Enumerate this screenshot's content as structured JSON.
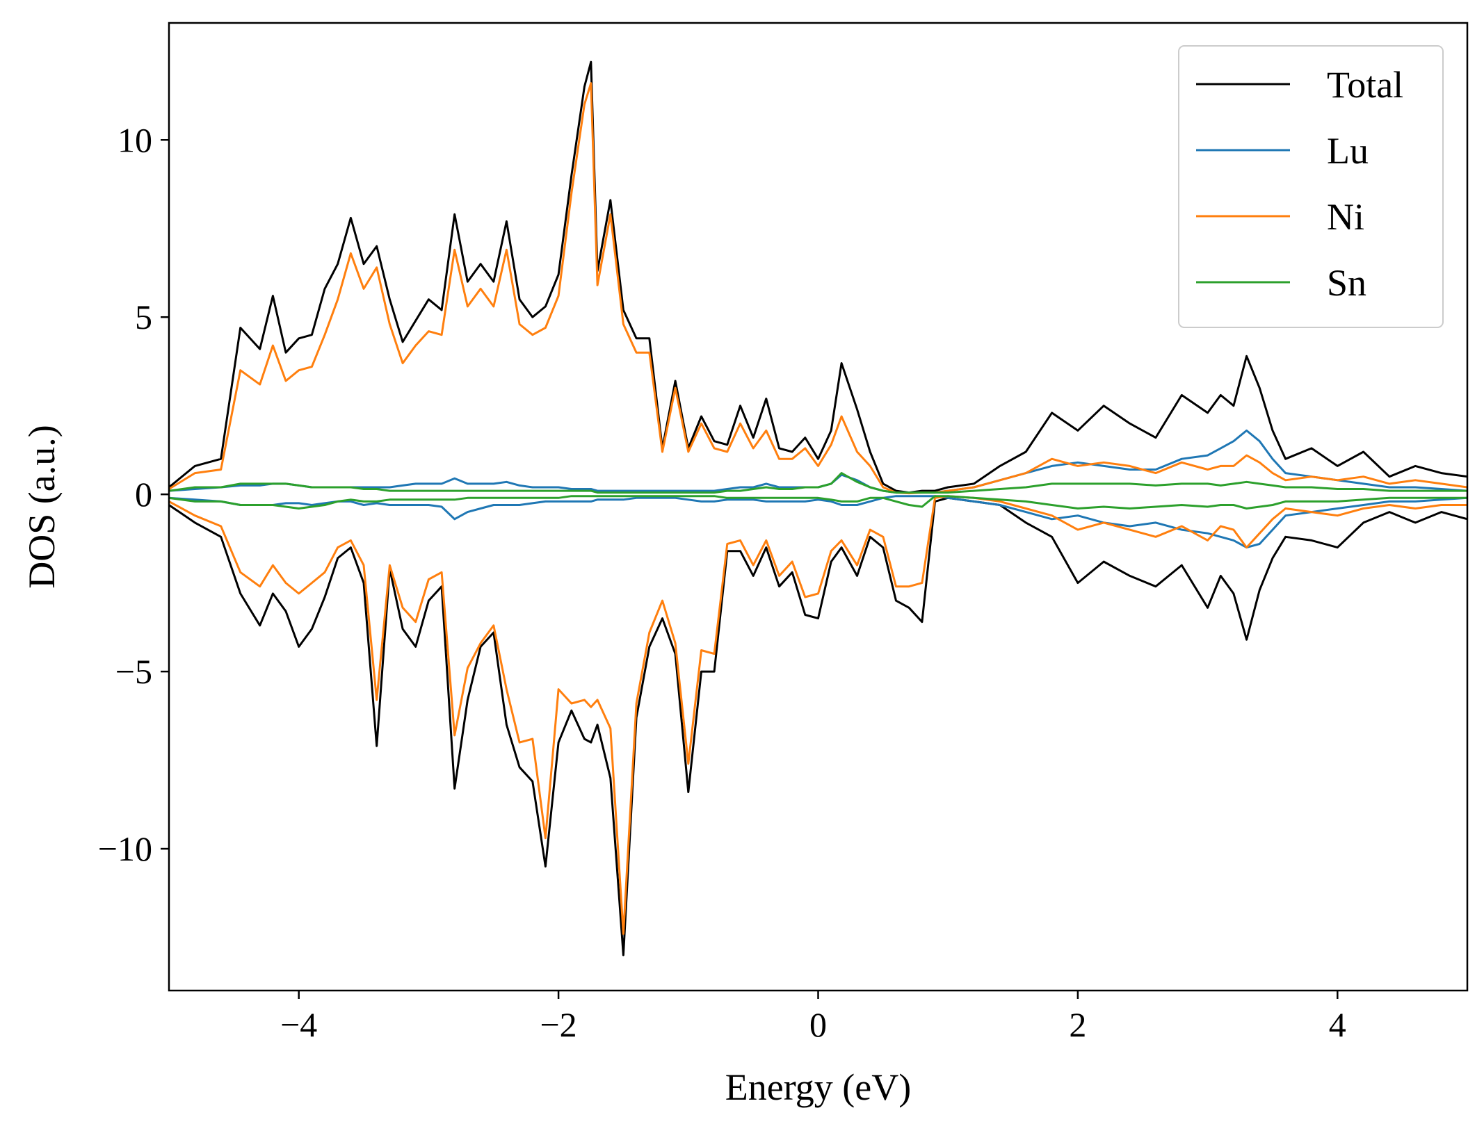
{
  "chart_data": {
    "type": "line",
    "title": "",
    "xlabel": "Energy (eV)",
    "ylabel": "DOS (a.u.)",
    "xlim": [
      -5,
      5
    ],
    "ylim": [
      -14,
      13.3
    ],
    "grid": false,
    "legend_position": "top-right",
    "x_ticks": [
      -4,
      -2,
      0,
      2,
      4
    ],
    "x_tick_labels": [
      "−4",
      "−2",
      "0",
      "2",
      "4"
    ],
    "y_ticks": [
      10,
      5,
      0,
      -5,
      -10
    ],
    "y_tick_labels": [
      "10",
      "5",
      "0",
      "−5",
      "−10"
    ],
    "x": [
      -5.0,
      -4.8,
      -4.6,
      -4.45,
      -4.3,
      -4.2,
      -4.1,
      -4.0,
      -3.9,
      -3.8,
      -3.7,
      -3.6,
      -3.5,
      -3.4,
      -3.3,
      -3.2,
      -3.1,
      -3.0,
      -2.9,
      -2.8,
      -2.7,
      -2.6,
      -2.5,
      -2.4,
      -2.3,
      -2.2,
      -2.1,
      -2.0,
      -1.9,
      -1.8,
      -1.75,
      -1.7,
      -1.6,
      -1.5,
      -1.4,
      -1.3,
      -1.2,
      -1.1,
      -1.0,
      -0.9,
      -0.8,
      -0.7,
      -0.6,
      -0.5,
      -0.4,
      -0.3,
      -0.2,
      -0.1,
      0.0,
      0.1,
      0.18,
      0.3,
      0.4,
      0.5,
      0.6,
      0.7,
      0.8,
      0.9,
      1.0,
      1.2,
      1.4,
      1.6,
      1.8,
      2.0,
      2.2,
      2.4,
      2.6,
      2.8,
      3.0,
      3.1,
      3.2,
      3.3,
      3.4,
      3.5,
      3.6,
      3.8,
      4.0,
      4.2,
      4.4,
      4.6,
      4.8,
      5.0
    ],
    "series": [
      {
        "name": "Total",
        "color": "#000000",
        "up": [
          0.2,
          0.8,
          1.0,
          4.7,
          4.1,
          5.6,
          4.0,
          4.4,
          4.5,
          5.8,
          6.5,
          7.8,
          6.5,
          7.0,
          5.5,
          4.3,
          4.9,
          5.5,
          5.2,
          7.9,
          6.0,
          6.5,
          6.0,
          7.7,
          5.5,
          5.0,
          5.3,
          6.2,
          9.0,
          11.5,
          12.2,
          6.3,
          8.3,
          5.2,
          4.4,
          4.4,
          1.3,
          3.2,
          1.3,
          2.2,
          1.5,
          1.4,
          2.5,
          1.6,
          2.7,
          1.3,
          1.2,
          1.6,
          1.0,
          1.8,
          3.7,
          2.4,
          1.2,
          0.3,
          0.1,
          0.05,
          0.1,
          0.1,
          0.2,
          0.3,
          0.8,
          1.2,
          2.3,
          1.8,
          2.5,
          2.0,
          1.6,
          2.8,
          2.3,
          2.8,
          2.5,
          3.9,
          3.0,
          1.8,
          1.0,
          1.3,
          0.8,
          1.2,
          0.5,
          0.8,
          0.6,
          0.5
        ],
        "down": [
          -0.3,
          -0.8,
          -1.2,
          -2.8,
          -3.7,
          -2.8,
          -3.3,
          -4.3,
          -3.8,
          -2.9,
          -1.8,
          -1.5,
          -2.5,
          -7.1,
          -2.1,
          -3.8,
          -4.3,
          -3.0,
          -2.6,
          -8.3,
          -5.8,
          -4.3,
          -3.9,
          -6.5,
          -7.7,
          -8.1,
          -10.5,
          -7.0,
          -6.1,
          -6.9,
          -7.0,
          -6.5,
          -8.0,
          -13.0,
          -6.3,
          -4.3,
          -3.5,
          -4.5,
          -8.4,
          -5.0,
          -5.0,
          -1.6,
          -1.6,
          -2.3,
          -1.5,
          -2.6,
          -2.2,
          -3.4,
          -3.5,
          -1.9,
          -1.5,
          -2.3,
          -1.2,
          -1.5,
          -3.0,
          -3.2,
          -3.6,
          -0.2,
          -0.1,
          -0.2,
          -0.3,
          -0.8,
          -1.2,
          -2.5,
          -1.9,
          -2.3,
          -2.6,
          -2.0,
          -3.2,
          -2.3,
          -2.8,
          -4.1,
          -2.7,
          -1.8,
          -1.2,
          -1.3,
          -1.5,
          -0.8,
          -0.5,
          -0.8,
          -0.5,
          -0.7
        ]
      },
      {
        "name": "Lu",
        "color": "#1f77b4",
        "up": [
          0.1,
          0.15,
          0.2,
          0.25,
          0.25,
          0.3,
          0.3,
          0.25,
          0.2,
          0.2,
          0.2,
          0.2,
          0.2,
          0.2,
          0.2,
          0.25,
          0.3,
          0.3,
          0.3,
          0.45,
          0.3,
          0.3,
          0.3,
          0.35,
          0.25,
          0.2,
          0.2,
          0.2,
          0.15,
          0.15,
          0.15,
          0.1,
          0.1,
          0.1,
          0.1,
          0.1,
          0.1,
          0.1,
          0.1,
          0.1,
          0.1,
          0.15,
          0.2,
          0.2,
          0.3,
          0.2,
          0.2,
          0.2,
          0.2,
          0.3,
          0.55,
          0.4,
          0.2,
          0.1,
          0.05,
          0.05,
          0.05,
          0.05,
          0.1,
          0.2,
          0.4,
          0.6,
          0.8,
          0.9,
          0.8,
          0.7,
          0.7,
          1.0,
          1.1,
          1.3,
          1.5,
          1.8,
          1.5,
          1.0,
          0.6,
          0.5,
          0.4,
          0.3,
          0.2,
          0.2,
          0.15,
          0.1
        ],
        "down": [
          -0.1,
          -0.15,
          -0.2,
          -0.3,
          -0.3,
          -0.3,
          -0.25,
          -0.25,
          -0.3,
          -0.25,
          -0.2,
          -0.2,
          -0.3,
          -0.25,
          -0.3,
          -0.3,
          -0.3,
          -0.3,
          -0.35,
          -0.7,
          -0.5,
          -0.4,
          -0.3,
          -0.3,
          -0.3,
          -0.25,
          -0.2,
          -0.2,
          -0.2,
          -0.2,
          -0.2,
          -0.15,
          -0.15,
          -0.15,
          -0.1,
          -0.1,
          -0.1,
          -0.1,
          -0.15,
          -0.2,
          -0.2,
          -0.15,
          -0.15,
          -0.15,
          -0.2,
          -0.2,
          -0.2,
          -0.2,
          -0.15,
          -0.2,
          -0.3,
          -0.3,
          -0.2,
          -0.1,
          -0.05,
          -0.05,
          -0.05,
          -0.05,
          -0.1,
          -0.2,
          -0.3,
          -0.5,
          -0.7,
          -0.6,
          -0.8,
          -0.9,
          -0.8,
          -1.0,
          -1.1,
          -1.2,
          -1.3,
          -1.5,
          -1.4,
          -1.0,
          -0.6,
          -0.5,
          -0.4,
          -0.3,
          -0.2,
          -0.2,
          -0.15,
          -0.1
        ]
      },
      {
        "name": "Ni",
        "color": "#ff7f0e",
        "up": [
          0.15,
          0.6,
          0.7,
          3.5,
          3.1,
          4.2,
          3.2,
          3.5,
          3.6,
          4.5,
          5.5,
          6.8,
          5.8,
          6.4,
          4.8,
          3.7,
          4.2,
          4.6,
          4.5,
          6.9,
          5.3,
          5.8,
          5.3,
          6.9,
          4.8,
          4.5,
          4.7,
          5.6,
          8.5,
          11.0,
          11.6,
          5.9,
          7.9,
          4.8,
          4.0,
          4.0,
          1.2,
          3.0,
          1.2,
          2.0,
          1.3,
          1.2,
          2.0,
          1.3,
          1.8,
          1.0,
          1.0,
          1.3,
          0.8,
          1.4,
          2.2,
          1.2,
          0.8,
          0.2,
          0.05,
          0.03,
          0.05,
          0.05,
          0.1,
          0.2,
          0.4,
          0.6,
          1.0,
          0.8,
          0.9,
          0.8,
          0.6,
          0.9,
          0.7,
          0.8,
          0.8,
          1.1,
          0.9,
          0.6,
          0.4,
          0.5,
          0.4,
          0.5,
          0.3,
          0.4,
          0.3,
          0.2
        ],
        "down": [
          -0.2,
          -0.6,
          -0.9,
          -2.2,
          -2.6,
          -2.0,
          -2.5,
          -2.8,
          -2.5,
          -2.2,
          -1.5,
          -1.3,
          -2.0,
          -5.8,
          -2.0,
          -3.2,
          -3.6,
          -2.4,
          -2.2,
          -6.8,
          -4.9,
          -4.2,
          -3.7,
          -5.5,
          -7.0,
          -6.9,
          -9.7,
          -5.5,
          -5.9,
          -5.8,
          -6.0,
          -5.8,
          -6.6,
          -12.4,
          -5.9,
          -3.9,
          -3.0,
          -4.2,
          -7.6,
          -4.4,
          -4.5,
          -1.4,
          -1.3,
          -2.0,
          -1.3,
          -2.3,
          -1.9,
          -2.9,
          -2.8,
          -1.6,
          -1.3,
          -2.0,
          -1.0,
          -1.2,
          -2.6,
          -2.6,
          -2.5,
          -0.1,
          -0.05,
          -0.1,
          -0.2,
          -0.4,
          -0.6,
          -1.0,
          -0.8,
          -1.0,
          -1.2,
          -0.9,
          -1.3,
          -0.9,
          -1.0,
          -1.5,
          -1.1,
          -0.7,
          -0.4,
          -0.5,
          -0.6,
          -0.4,
          -0.3,
          -0.4,
          -0.3,
          -0.3
        ]
      },
      {
        "name": "Sn",
        "color": "#2ca02c",
        "up": [
          0.1,
          0.2,
          0.2,
          0.3,
          0.3,
          0.3,
          0.3,
          0.25,
          0.2,
          0.2,
          0.2,
          0.2,
          0.15,
          0.15,
          0.1,
          0.1,
          0.1,
          0.1,
          0.1,
          0.1,
          0.1,
          0.1,
          0.1,
          0.1,
          0.1,
          0.1,
          0.1,
          0.1,
          0.1,
          0.1,
          0.1,
          0.05,
          0.05,
          0.05,
          0.05,
          0.05,
          0.05,
          0.05,
          0.05,
          0.05,
          0.05,
          0.1,
          0.1,
          0.15,
          0.2,
          0.15,
          0.15,
          0.2,
          0.2,
          0.3,
          0.6,
          0.35,
          0.2,
          0.1,
          0.05,
          0.05,
          0.05,
          0.05,
          0.05,
          0.1,
          0.15,
          0.2,
          0.3,
          0.3,
          0.3,
          0.3,
          0.25,
          0.3,
          0.3,
          0.25,
          0.3,
          0.35,
          0.3,
          0.25,
          0.2,
          0.2,
          0.15,
          0.15,
          0.1,
          0.1,
          0.1,
          0.1
        ],
        "down": [
          -0.1,
          -0.2,
          -0.2,
          -0.3,
          -0.3,
          -0.3,
          -0.35,
          -0.4,
          -0.35,
          -0.3,
          -0.2,
          -0.15,
          -0.2,
          -0.2,
          -0.15,
          -0.15,
          -0.15,
          -0.15,
          -0.15,
          -0.15,
          -0.1,
          -0.1,
          -0.1,
          -0.1,
          -0.1,
          -0.1,
          -0.1,
          -0.1,
          -0.05,
          -0.05,
          -0.05,
          -0.05,
          -0.05,
          -0.05,
          -0.05,
          -0.05,
          -0.05,
          -0.05,
          -0.05,
          -0.05,
          -0.05,
          -0.1,
          -0.1,
          -0.1,
          -0.1,
          -0.1,
          -0.1,
          -0.1,
          -0.1,
          -0.15,
          -0.2,
          -0.2,
          -0.1,
          -0.1,
          -0.2,
          -0.3,
          -0.35,
          -0.05,
          -0.05,
          -0.1,
          -0.15,
          -0.2,
          -0.3,
          -0.4,
          -0.35,
          -0.4,
          -0.35,
          -0.3,
          -0.35,
          -0.3,
          -0.3,
          -0.4,
          -0.35,
          -0.3,
          -0.2,
          -0.2,
          -0.2,
          -0.15,
          -0.1,
          -0.1,
          -0.1,
          -0.1
        ]
      }
    ]
  }
}
